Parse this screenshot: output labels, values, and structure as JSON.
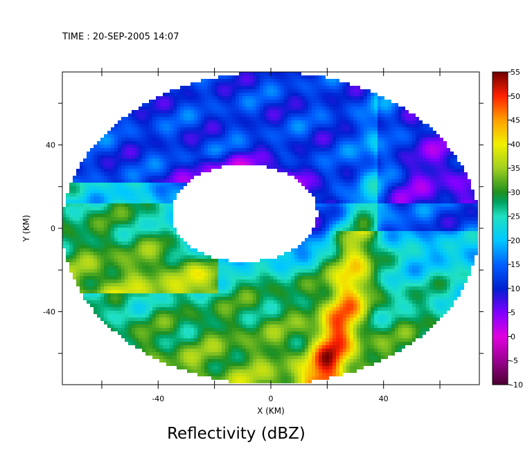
{
  "header": {
    "time_label": "TIME : 20-SEP-2005 14:07"
  },
  "chart_data": {
    "type": "heatmap",
    "title": "Reflectivity (dBZ)",
    "xlabel": "X (KM)",
    "ylabel": "Y (KM)",
    "xlim": [
      -74,
      74
    ],
    "ylim": [
      -75,
      75
    ],
    "x_ticks": [
      -40,
      0,
      40
    ],
    "y_ticks": [
      40,
      0,
      -40
    ],
    "colorbar": {
      "ticks": [
        55,
        50,
        45,
        40,
        35,
        30,
        25,
        20,
        15,
        10,
        5,
        0,
        -5,
        -10
      ],
      "range": [
        -10,
        55
      ],
      "stops": [
        {
          "v": -10,
          "c": "#4a0030"
        },
        {
          "v": -5,
          "c": "#9a0090"
        },
        {
          "v": 0,
          "c": "#e000e0"
        },
        {
          "v": 5,
          "c": "#8000ff"
        },
        {
          "v": 10,
          "c": "#0020d0"
        },
        {
          "v": 15,
          "c": "#0060ff"
        },
        {
          "v": 20,
          "c": "#00c8ff"
        },
        {
          "v": 25,
          "c": "#20e0c0"
        },
        {
          "v": 28,
          "c": "#00a060"
        },
        {
          "v": 30,
          "c": "#209020"
        },
        {
          "v": 35,
          "c": "#a0d020"
        },
        {
          "v": 40,
          "c": "#f0f000"
        },
        {
          "v": 45,
          "c": "#ffa000"
        },
        {
          "v": 50,
          "c": "#ff2000"
        },
        {
          "v": 55,
          "c": "#700000"
        }
      ]
    },
    "field": {
      "description_of_shape": "",
      "outer_ring_center_km": [
        0,
        0
      ],
      "eye_center_km": [
        -10,
        8
      ]
    }
  }
}
